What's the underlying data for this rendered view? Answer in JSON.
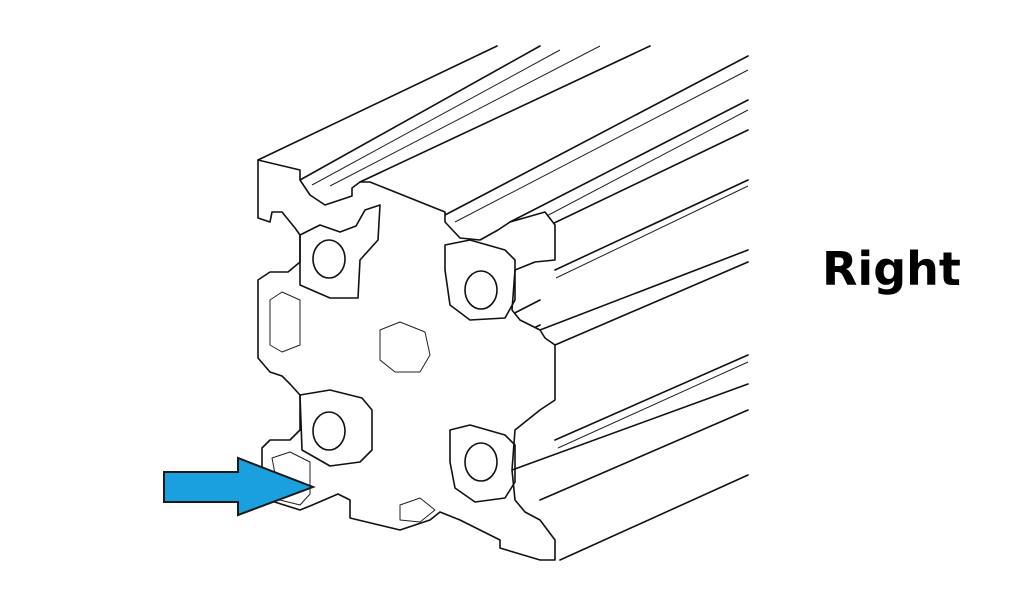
{
  "label": "Right",
  "arrow": {
    "color": "#1a9fdf",
    "outline": "#1a1a1a",
    "icon": "right-arrow-icon"
  },
  "illustration": {
    "subject": "extrusion-profile",
    "line_color": "#111111"
  }
}
